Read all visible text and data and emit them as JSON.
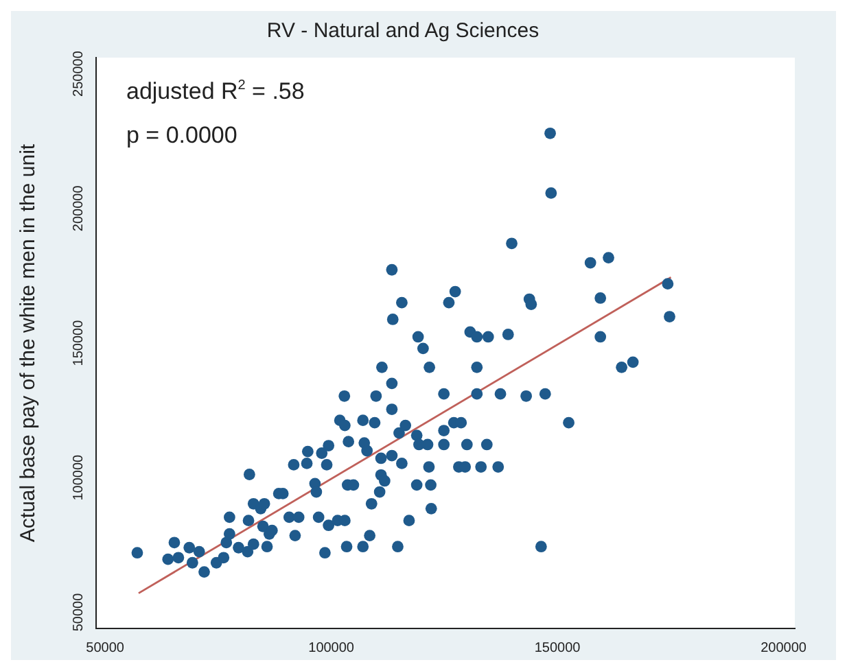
{
  "chart_data": {
    "type": "scatter",
    "title": "RV - Natural and Ag Sciences",
    "ylabel": "Actual base pay of the white men in the unit",
    "annotations": [
      "adjusted R$^{2}$ = .58",
      "p = 0.0000"
    ],
    "xlim": [
      48000,
      202500
    ],
    "ylim": [
      44000,
      256000
    ],
    "xticks": [
      50000,
      100000,
      150000,
      200000
    ],
    "yticks": [
      50000,
      100000,
      150000,
      200000,
      250000
    ],
    "grid": false,
    "legend": false,
    "series": [
      {
        "color": "#1f5a8c",
        "marker": "circle",
        "x": [
          57100,
          63900,
          65300,
          66200,
          68600,
          69300,
          70800,
          71900,
          74600,
          76200,
          76800,
          77500,
          77500,
          79500,
          81500,
          81700,
          81900,
          82800,
          82800,
          84400,
          85200,
          84900,
          85800,
          86300,
          86900,
          88400,
          89300,
          90700,
          92000,
          92800,
          91700,
          94800,
          94600,
          96400,
          96700,
          97200,
          97900,
          99000,
          99400,
          98600,
          99400,
          101400,
          103000,
          101900,
          103000,
          102900,
          103800,
          103600,
          104900,
          103400,
          107000,
          109600,
          107300,
          107900,
          108900,
          108500,
          107000,
          109900,
          111200,
          111000,
          111000,
          110700,
          111800,
          113400,
          113400,
          113400,
          113400,
          113600,
          115600,
          115600,
          115000,
          116400,
          114700,
          119200,
          120300,
          121700,
          118900,
          119400,
          118900,
          121300,
          121600,
          122000,
          122100,
          117200,
          124900,
          124900,
          124900,
          126000,
          127400,
          127100,
          128700,
          128200,
          129600,
          130000,
          130700,
          132200,
          132200,
          132200,
          133100,
          134700,
          134400,
          136900,
          137400,
          139100,
          139900,
          143100,
          143800,
          144200,
          147300,
          146400,
          148400,
          148600,
          152500,
          157300,
          159500,
          159500,
          161300,
          164200,
          166700,
          174400,
          174800
        ],
        "values": [
          72100,
          69700,
          75900,
          70300,
          74000,
          68400,
          72500,
          65000,
          68400,
          70300,
          75900,
          85300,
          79100,
          74000,
          72500,
          84100,
          101200,
          75300,
          90300,
          88500,
          90300,
          81900,
          74400,
          79100,
          80400,
          94100,
          94100,
          85300,
          78500,
          85300,
          104800,
          109700,
          105300,
          97800,
          94700,
          85300,
          109100,
          104800,
          111900,
          72100,
          82300,
          84100,
          84100,
          121300,
          119400,
          130300,
          113400,
          97300,
          97300,
          74400,
          121300,
          120400,
          112900,
          110000,
          90300,
          78500,
          74400,
          130300,
          141000,
          107200,
          101000,
          94700,
          98800,
          135000,
          125400,
          108200,
          177200,
          158800,
          165000,
          105300,
          116600,
          119400,
          74400,
          152300,
          148000,
          141000,
          115700,
          112300,
          97300,
          112300,
          104000,
          97300,
          88500,
          84100,
          131100,
          117500,
          112300,
          165000,
          169100,
          120400,
          120400,
          104000,
          104000,
          112300,
          154100,
          152300,
          141000,
          131100,
          104000,
          152300,
          112300,
          104000,
          131100,
          153200,
          187000,
          130300,
          166300,
          164400,
          131100,
          74400,
          227900,
          205700,
          120400,
          179800,
          166700,
          152300,
          181700,
          141000,
          142900,
          172000,
          159800
        ]
      },
      {
        "type": "line",
        "color": "#c0605a",
        "x": [
          57400,
          175100
        ],
        "values": [
          57100,
          174400
        ]
      }
    ]
  }
}
